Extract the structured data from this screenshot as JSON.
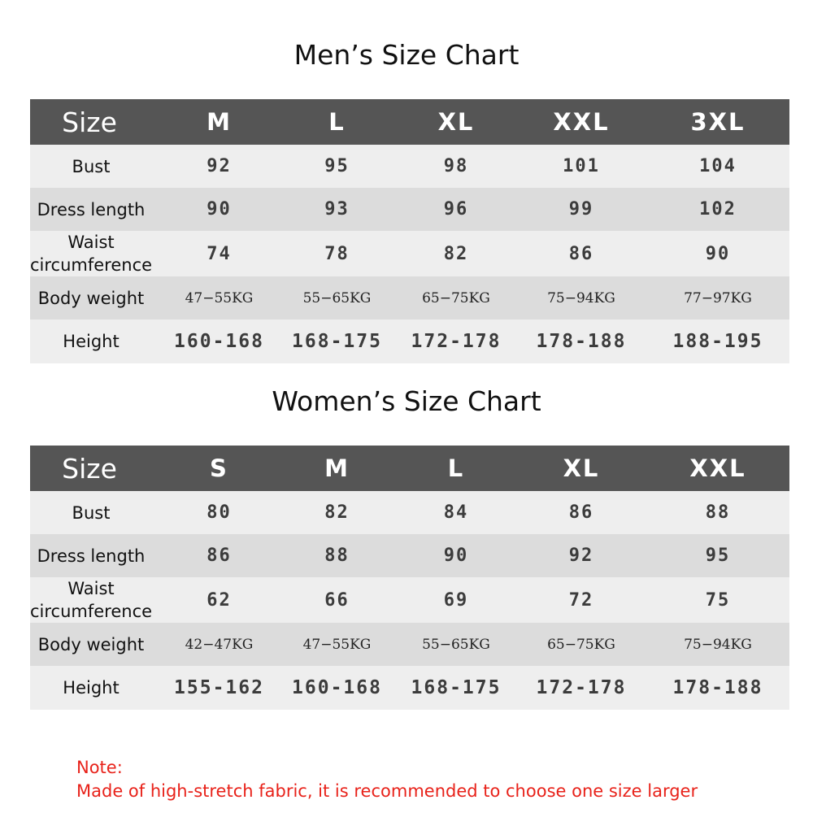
{
  "men": {
    "title": "Men’s Size Chart",
    "header": {
      "label": "Size",
      "sizes": [
        "M",
        "L",
        "XL",
        "XXL",
        "3XL"
      ]
    },
    "rows": [
      {
        "label": "Bust",
        "values": [
          "92",
          "95",
          "98",
          "101",
          "104"
        ]
      },
      {
        "label": "Dress length",
        "values": [
          "90",
          "93",
          "96",
          "99",
          "102"
        ]
      },
      {
        "label_line1": "Waist",
        "label_line2": "circumference",
        "values": [
          "74",
          "78",
          "82",
          "86",
          "90"
        ]
      },
      {
        "label": "Body weight",
        "values": [
          "47−55KG",
          "55−65KG",
          "65−75KG",
          "75−94KG",
          "77−97KG"
        ]
      },
      {
        "label": "Height",
        "values": [
          "160-168",
          "168-175",
          "172-178",
          "178-188",
          "188-195"
        ]
      }
    ]
  },
  "women": {
    "title": "Women’s Size Chart",
    "header": {
      "label": "Size",
      "sizes": [
        "S",
        "M",
        "L",
        "XL",
        "XXL"
      ]
    },
    "rows": [
      {
        "label": "Bust",
        "values": [
          "80",
          "82",
          "84",
          "86",
          "88"
        ]
      },
      {
        "label": "Dress length",
        "values": [
          "86",
          "88",
          "90",
          "92",
          "95"
        ]
      },
      {
        "label_line1": "Waist",
        "label_line2": "circumference",
        "values": [
          "62",
          "66",
          "69",
          "72",
          "75"
        ]
      },
      {
        "label": "Body weight",
        "values": [
          "42−47KG",
          "47−55KG",
          "55−65KG",
          "65−75KG",
          "75−94KG"
        ]
      },
      {
        "label": "Height",
        "values": [
          "155-162",
          "160-168",
          "168-175",
          "172-178",
          "178-188"
        ]
      }
    ]
  },
  "note": {
    "heading": "Note:",
    "text": "Made of high-stretch fabric, it is recommended to choose one size larger"
  },
  "colors": {
    "header_bg": "#555555",
    "row_light": "#eeeeee",
    "row_dark": "#dcdcdc",
    "note": "#e8221a"
  }
}
